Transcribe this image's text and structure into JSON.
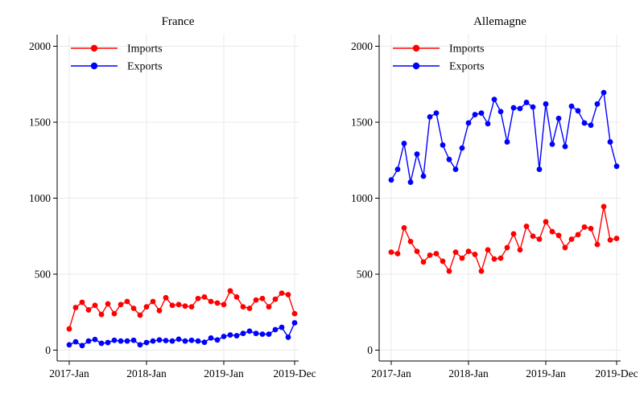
{
  "colors": {
    "imports": "#ff0000",
    "exports": "#0000ff",
    "grid": "#e8e8e8",
    "axis": "#000000",
    "background": "#ffffff"
  },
  "chart_data": [
    {
      "type": "line",
      "title": "France",
      "grid": true,
      "legend_position": "top-left-inside",
      "ylim": [
        0,
        2000
      ],
      "y_ticks": [
        0,
        500,
        1000,
        1500,
        2000
      ],
      "x_tick_labels": [
        "2017-Jan",
        "2018-Jan",
        "2019-Jan",
        "2019-Dec"
      ],
      "x_tick_month_indices": [
        0,
        12,
        24,
        35
      ],
      "categories": [
        "2017-Jan",
        "2017-Feb",
        "2017-Mar",
        "2017-Apr",
        "2017-May",
        "2017-Jun",
        "2017-Jul",
        "2017-Aug",
        "2017-Sep",
        "2017-Oct",
        "2017-Nov",
        "2017-Dec",
        "2018-Jan",
        "2018-Feb",
        "2018-Mar",
        "2018-Apr",
        "2018-May",
        "2018-Jun",
        "2018-Jul",
        "2018-Aug",
        "2018-Sep",
        "2018-Oct",
        "2018-Nov",
        "2018-Dec",
        "2019-Jan",
        "2019-Feb",
        "2019-Mar",
        "2019-Apr",
        "2019-May",
        "2019-Jun",
        "2019-Jul",
        "2019-Aug",
        "2019-Sep",
        "2019-Oct",
        "2019-Nov",
        "2019-Dec"
      ],
      "series": [
        {
          "name": "Imports",
          "color": "#ff0000",
          "values": [
            140,
            280,
            315,
            265,
            295,
            235,
            305,
            240,
            300,
            320,
            275,
            230,
            285,
            320,
            260,
            345,
            295,
            300,
            290,
            285,
            340,
            350,
            320,
            310,
            300,
            390,
            350,
            285,
            275,
            330,
            340,
            285,
            335,
            375,
            365,
            240
          ]
        },
        {
          "name": "Exports",
          "color": "#0000ff",
          "values": [
            35,
            55,
            30,
            60,
            70,
            45,
            50,
            65,
            60,
            60,
            65,
            35,
            50,
            60,
            67,
            63,
            60,
            72,
            60,
            65,
            60,
            52,
            80,
            67,
            90,
            100,
            95,
            110,
            125,
            110,
            105,
            105,
            135,
            150,
            85,
            180
          ]
        }
      ]
    },
    {
      "type": "line",
      "title": "Allemagne",
      "grid": true,
      "legend_position": "top-left-inside",
      "ylim": [
        0,
        2000
      ],
      "y_ticks": [
        0,
        500,
        1000,
        1500,
        2000
      ],
      "x_tick_labels": [
        "2017-Jan",
        "2018-Jan",
        "2019-Jan",
        "2019-Dec"
      ],
      "x_tick_month_indices": [
        0,
        12,
        24,
        35
      ],
      "categories": [
        "2017-Jan",
        "2017-Feb",
        "2017-Mar",
        "2017-Apr",
        "2017-May",
        "2017-Jun",
        "2017-Jul",
        "2017-Aug",
        "2017-Sep",
        "2017-Oct",
        "2017-Nov",
        "2017-Dec",
        "2018-Jan",
        "2018-Feb",
        "2018-Mar",
        "2018-Apr",
        "2018-May",
        "2018-Jun",
        "2018-Jul",
        "2018-Aug",
        "2018-Sep",
        "2018-Oct",
        "2018-Nov",
        "2018-Dec",
        "2019-Jan",
        "2019-Feb",
        "2019-Mar",
        "2019-Apr",
        "2019-May",
        "2019-Jun",
        "2019-Jul",
        "2019-Aug",
        "2019-Sep",
        "2019-Oct",
        "2019-Nov",
        "2019-Dec"
      ],
      "series": [
        {
          "name": "Imports",
          "color": "#ff0000",
          "values": [
            645,
            635,
            805,
            715,
            650,
            580,
            625,
            635,
            585,
            520,
            645,
            605,
            650,
            630,
            520,
            660,
            600,
            605,
            675,
            765,
            660,
            815,
            750,
            730,
            845,
            780,
            755,
            675,
            730,
            760,
            810,
            800,
            695,
            945,
            725,
            735
          ]
        },
        {
          "name": "Exports",
          "color": "#0000ff",
          "values": [
            1120,
            1190,
            1360,
            1105,
            1290,
            1145,
            1535,
            1560,
            1350,
            1255,
            1190,
            1330,
            1495,
            1550,
            1560,
            1490,
            1650,
            1570,
            1370,
            1595,
            1590,
            1630,
            1600,
            1190,
            1620,
            1355,
            1525,
            1340,
            1605,
            1575,
            1495,
            1480,
            1620,
            1695,
            1370,
            1210
          ]
        }
      ]
    }
  ]
}
